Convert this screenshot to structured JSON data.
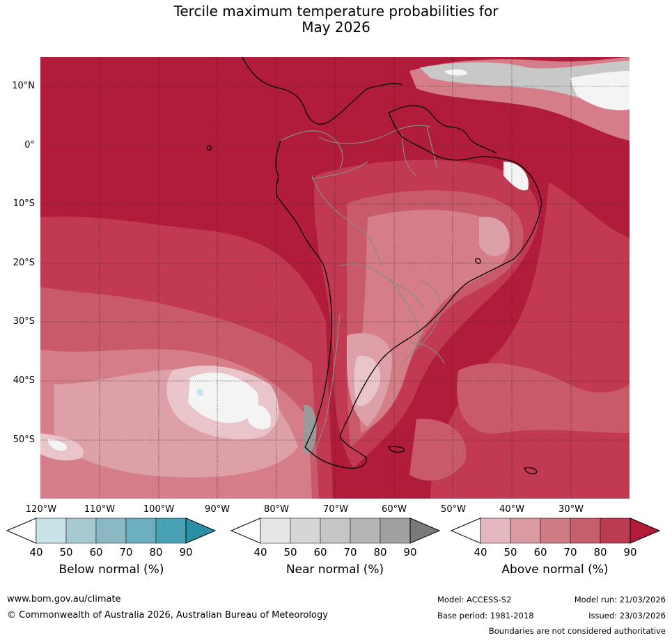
{
  "title": {
    "line1": "Tercile maximum temperature probabilities for",
    "line2": "May 2026"
  },
  "map": {
    "lat_labels": [
      "10°N",
      "0°",
      "10°S",
      "20°S",
      "30°S",
      "40°S",
      "50°S"
    ],
    "lon_labels": [
      "120°W",
      "110°W",
      "100°W",
      "90°W",
      "80°W",
      "70°W",
      "60°W",
      "50°W",
      "40°W",
      "30°W"
    ],
    "colors": {
      "above_90": "#b11c3a",
      "above_80": "#c13a51",
      "above_70": "#c85a6a",
      "above_60": "#d57d88",
      "above_50": "#dea0a8",
      "above_40": "#e9c4c9",
      "near_gray": "#c8c8c8",
      "near_dark": "#9a9a9a",
      "below_light": "#c7e2e8",
      "white": "#f4f4f4",
      "coast": "#000000",
      "border": "#8a8a8a"
    }
  },
  "colorbars": [
    {
      "name": "below",
      "title": "Below normal (%)",
      "ticks": [
        "40",
        "50",
        "60",
        "70",
        "80",
        "90"
      ],
      "colors": [
        "#ffffff",
        "#c9e2e8",
        "#a7c9d0",
        "#8ab8c4",
        "#6cafbe",
        "#48a2b3",
        "#2a8fa5"
      ]
    },
    {
      "name": "near",
      "title": "Near normal (%)",
      "ticks": [
        "40",
        "50",
        "60",
        "70",
        "80",
        "90"
      ],
      "colors": [
        "#ffffff",
        "#e6e6e6",
        "#d6d6d6",
        "#c6c6c6",
        "#b6b6b6",
        "#a0a0a0",
        "#7a7a7a"
      ]
    },
    {
      "name": "above",
      "title": "Above normal (%)",
      "ticks": [
        "40",
        "50",
        "60",
        "70",
        "80",
        "90"
      ],
      "colors": [
        "#ffffff",
        "#e3b9bf",
        "#d99aa3",
        "#cf7b86",
        "#c55f6b",
        "#bb3b50",
        "#b11c3a"
      ]
    }
  ],
  "footer": {
    "website": "www.bom.gov.au/climate",
    "copyright": "© Commonwealth of Australia 2026, Australian Bureau of Meteorology",
    "model": "Model: ACCESS-S2",
    "base_period": "Base period: 1981-2018",
    "model_run": "Model run: 21/03/2026",
    "issued": "Issued: 23/03/2026",
    "disclaimer": "Boundaries are not considered authoritative"
  }
}
